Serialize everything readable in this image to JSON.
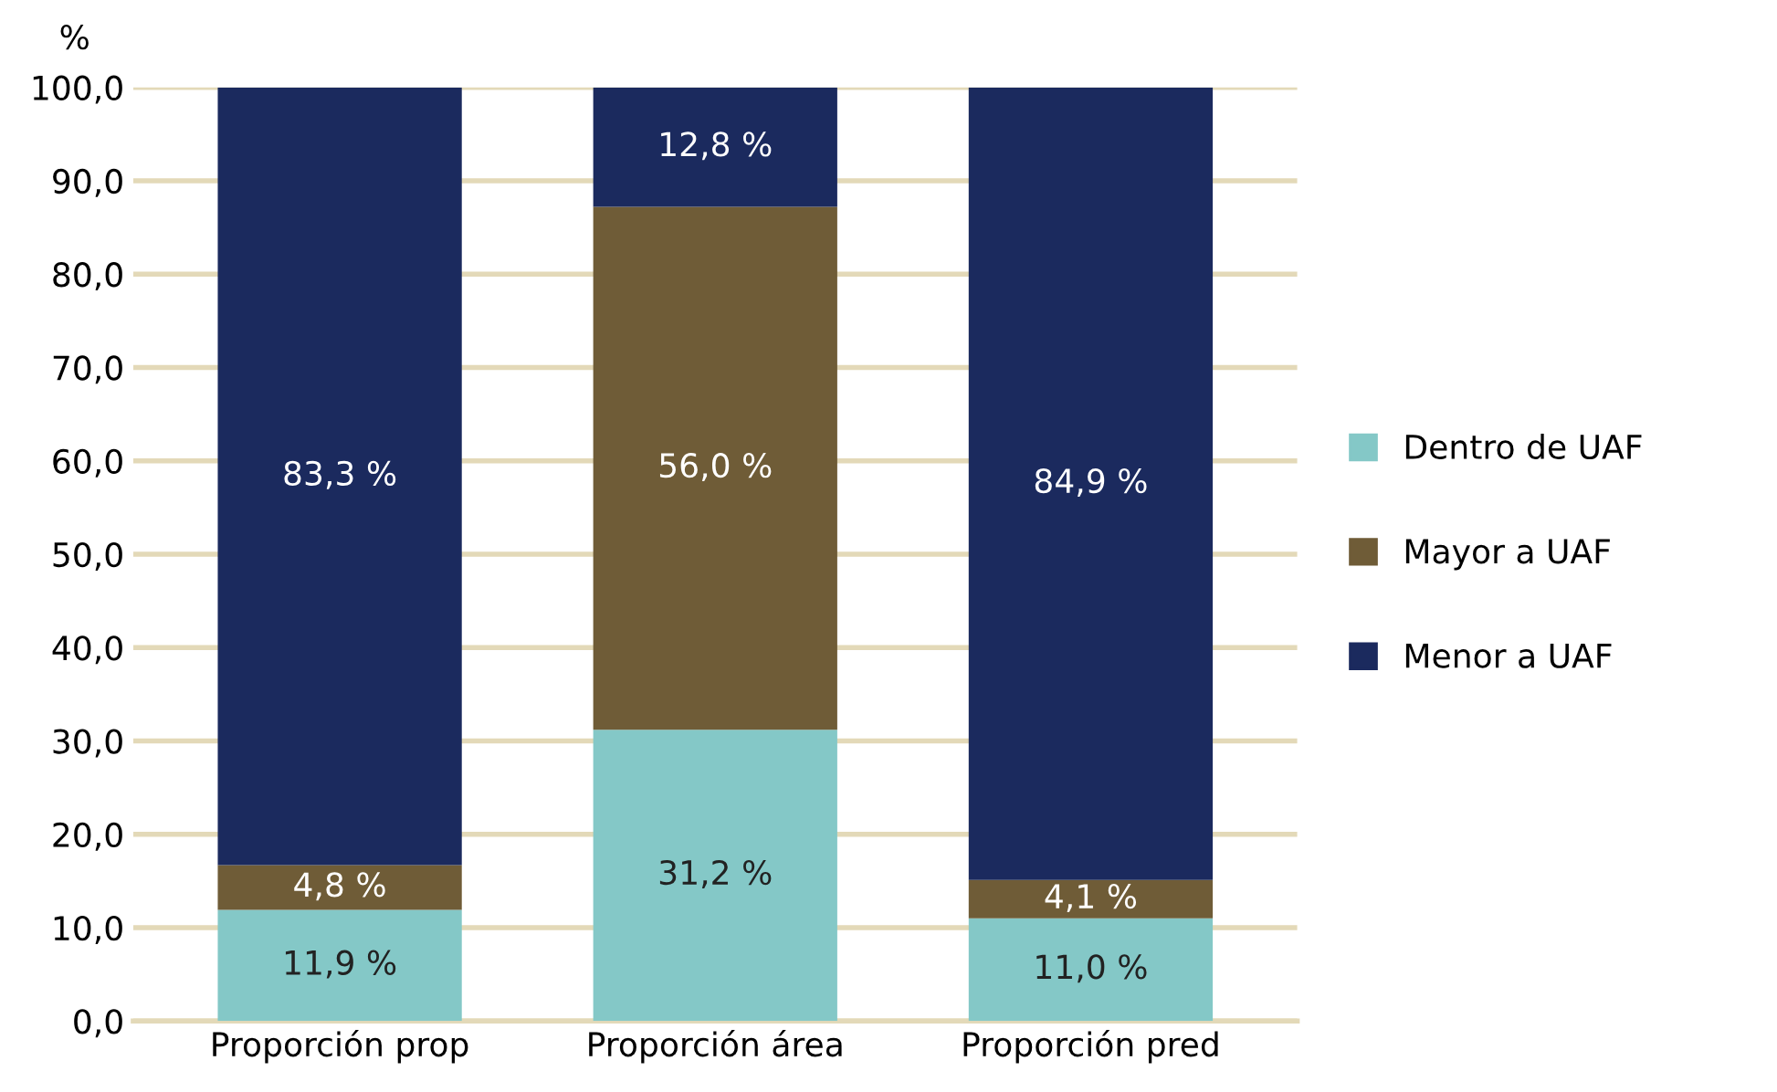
{
  "chart_data": {
    "type": "bar",
    "stacked": true,
    "ylabel": "%",
    "categories": [
      "Proporción prop",
      "Proporción área",
      "Proporción pred"
    ],
    "series": [
      {
        "name": "Dentro de UAF",
        "color": "#84c8c7",
        "values": [
          11.9,
          31.2,
          11.0
        ],
        "value_labels": [
          "11,9 %",
          "31,2 %",
          "11,0 %"
        ]
      },
      {
        "name": "Mayor a UAF",
        "color": "#6f5c37",
        "values": [
          4.8,
          56.0,
          4.1
        ],
        "value_labels": [
          "4,8 %",
          "56,0 %",
          "4,1 %"
        ]
      },
      {
        "name": "Menor a UAF",
        "color": "#1b2a5e",
        "values": [
          83.3,
          12.8,
          84.9
        ],
        "value_labels": [
          "83,3 %",
          "12,8 %",
          "84,9 %"
        ]
      }
    ],
    "ylim": [
      0,
      100
    ],
    "yticks": [
      {
        "value": 0,
        "label": "0,0"
      },
      {
        "value": 10,
        "label": "10,0"
      },
      {
        "value": 20,
        "label": "20,0"
      },
      {
        "value": 30,
        "label": "30,0"
      },
      {
        "value": 40,
        "label": "40,0"
      },
      {
        "value": 50,
        "label": "50,0"
      },
      {
        "value": 60,
        "label": "60,0"
      },
      {
        "value": 70,
        "label": "70,0"
      },
      {
        "value": 80,
        "label": "80,0"
      },
      {
        "value": 90,
        "label": "90,0"
      },
      {
        "value": 100,
        "label": "100,0"
      }
    ],
    "grid": "y",
    "legend": "right"
  }
}
